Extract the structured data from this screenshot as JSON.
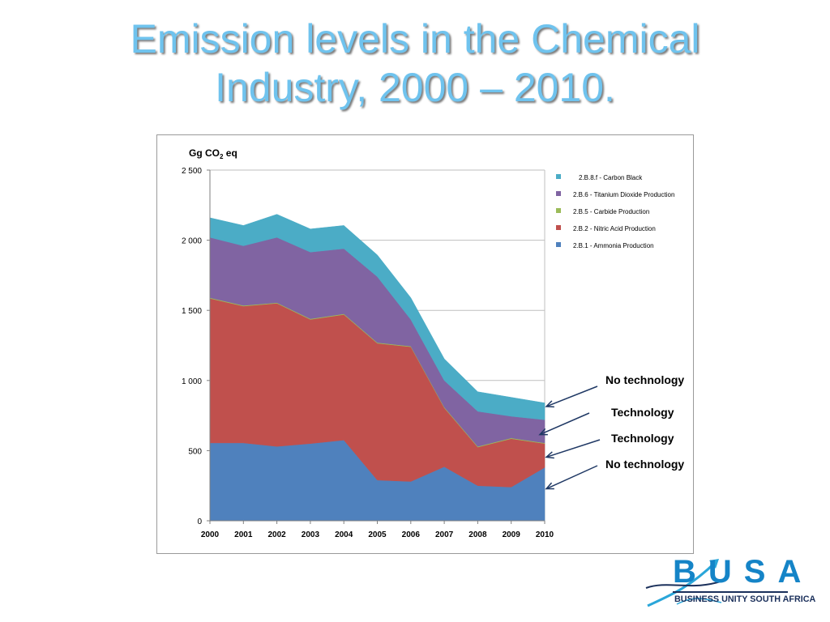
{
  "slide": {
    "title_line1": "Emission levels in the Chemical",
    "title_line2": "Industry, 2000 – 2010."
  },
  "annotations": [
    {
      "label": "No technology",
      "points_to": "2.B.8.f - Carbon Black"
    },
    {
      "label": "Technology",
      "points_to": "2.B.6 - Titanium Dioxide Production"
    },
    {
      "label": "Technology",
      "points_to": "2.B.2 - Nitric Acid Production"
    },
    {
      "label": "No technology",
      "points_to": "2.B.1 - Ammonia Production"
    }
  ],
  "logo": {
    "word": "BUSA",
    "subtitle": "BUSINESS UNITY SOUTH AFRICA",
    "colors": {
      "word": "#1584c7",
      "subtitle": "#1a2f5a",
      "swoosh": "#2aa6d9"
    }
  },
  "colors": {
    "title": "#6fc3ee",
    "ammonia": "#4f81bd",
    "nitric": "#c0504d",
    "carbide": "#9bbb59",
    "titanium": "#8064a2",
    "carbon_black": "#4bacc6",
    "gridline": "#bfbfbf",
    "arrow": "#1f3864"
  },
  "chart_data": {
    "type": "area",
    "stacked": true,
    "ylabel": "Gg CO2 eq",
    "ylim": [
      0,
      2500
    ],
    "yticks": [
      "0",
      "500",
      "1 000",
      "1 500",
      "2 000",
      "2 500"
    ],
    "ytick_values": [
      0,
      500,
      1000,
      1500,
      2000,
      2500
    ],
    "x": [
      "2000",
      "2001",
      "2002",
      "2003",
      "2004",
      "2005",
      "2006",
      "2007",
      "2008",
      "2009",
      "2010"
    ],
    "grid": true,
    "legend_position": "right",
    "series": [
      {
        "name": "2.B.1 - Ammonia Production",
        "color": "#4f81bd",
        "values": [
          555,
          555,
          530,
          550,
          575,
          290,
          280,
          385,
          250,
          240,
          380
        ]
      },
      {
        "name": "2.B.2 - Nitric Acid Production",
        "color": "#c0504d",
        "values": [
          1030,
          975,
          1020,
          885,
          895,
          975,
          960,
          420,
          275,
          345,
          170
        ]
      },
      {
        "name": "2.B.5 - Carbide Production",
        "color": "#9bbb59",
        "values": [
          5,
          5,
          5,
          5,
          5,
          5,
          5,
          5,
          5,
          5,
          5
        ]
      },
      {
        "name": "2.B.6 - Titanium Dioxide Production",
        "color": "#8064a2",
        "values": [
          430,
          425,
          465,
          475,
          465,
          470,
          190,
          190,
          250,
          155,
          165
        ]
      },
      {
        "name": "2.B.8.f - Carbon Black",
        "color": "#4bacc6",
        "values": [
          140,
          145,
          165,
          165,
          165,
          155,
          155,
          155,
          140,
          135,
          120
        ]
      }
    ],
    "legend_order": [
      "2.B.8.f - Carbon Black",
      "2.B.6 - Titanium Dioxide Production",
      "2.B.5 - Carbide Production",
      "2.B.2 - Nitric Acid Production",
      "2.B.1 - Ammonia Production"
    ]
  }
}
